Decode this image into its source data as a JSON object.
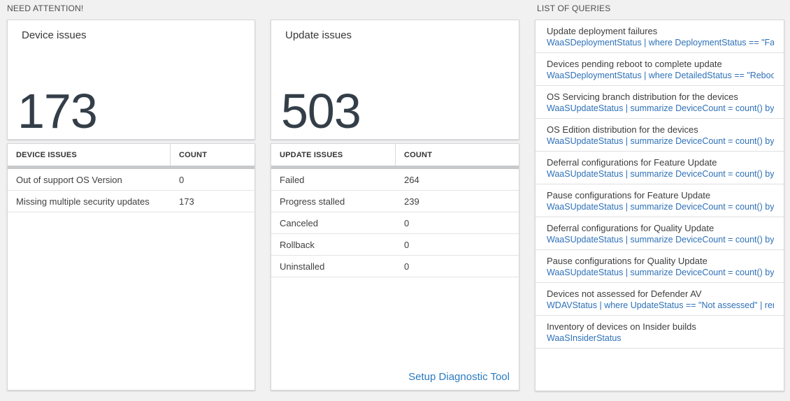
{
  "colors": {
    "background": "#f1f1f2",
    "accent_blue": "#2e71b8",
    "number_color": "#333e48",
    "thick_bar": "#c7c9cb"
  },
  "sections": {
    "need_attention": {
      "label": "NEED ATTENTION!"
    },
    "queries": {
      "label": "LIST OF QUERIES"
    }
  },
  "device_tile": {
    "title": "Device issues",
    "count": "173"
  },
  "update_tile": {
    "title": "Update issues",
    "count": "503"
  },
  "device_table": {
    "columns": {
      "0": "DEVICE ISSUES",
      "1": "COUNT"
    },
    "rows": [
      [
        "Out of support OS Version",
        "0"
      ],
      [
        "Missing multiple security updates",
        "173"
      ]
    ]
  },
  "update_table": {
    "columns": {
      "0": "UPDATE ISSUES",
      "1": "COUNT"
    },
    "rows": [
      [
        "Failed",
        "264"
      ],
      [
        "Progress stalled",
        "239"
      ],
      [
        "Canceled",
        "0"
      ],
      [
        "Rollback",
        "0"
      ],
      [
        "Uninstalled",
        "0"
      ]
    ],
    "footer_link": "Setup Diagnostic Tool"
  },
  "queries": [
    {
      "title": "Update deployment failures",
      "query": "WaaSDeploymentStatus | where DeploymentStatus == \"Failed\" |..."
    },
    {
      "title": "Devices pending reboot to complete update",
      "query": "WaaSDeploymentStatus | where DetailedStatus == \"Reboot pend..."
    },
    {
      "title": "OS Servicing branch distribution for the devices",
      "query": "WaaSUpdateStatus | summarize DeviceCount = count() by OSSer..."
    },
    {
      "title": "OS Edition distribution for the devices",
      "query": "WaaSUpdateStatus | summarize DeviceCount = count() by OSEdit..."
    },
    {
      "title": "Deferral configurations for Feature Update",
      "query": "WaaSUpdateStatus | summarize DeviceCount = count() by Featur..."
    },
    {
      "title": "Pause configurations for Feature Update",
      "query": "WaaSUpdateStatus | summarize DeviceCount = count() by Featur..."
    },
    {
      "title": "Deferral configurations for Quality Update",
      "query": "WaaSUpdateStatus | summarize DeviceCount = count() by Qualit..."
    },
    {
      "title": "Pause configurations for Quality Update",
      "query": "WaaSUpdateStatus | summarize DeviceCount = count() by Qualit..."
    },
    {
      "title": "Devices not assessed for Defender AV",
      "query": "WDAVStatus | where UpdateStatus == \"Not assessed\" | render ta..."
    },
    {
      "title": "Inventory of devices on Insider builds",
      "query": "WaaSInsiderStatus"
    }
  ]
}
